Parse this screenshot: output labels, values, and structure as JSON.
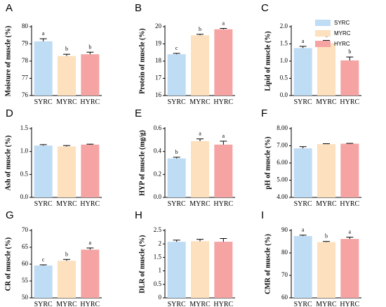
{
  "colors": {
    "SYRC": "#bfdcf5",
    "MYRC": "#fde0bd",
    "HYRC": "#f5a3a3",
    "axis": "#000000",
    "error": "#000000"
  },
  "legend": {
    "placement": "top-right",
    "entries": [
      "SYRC",
      "MYRC",
      "HYRC"
    ]
  },
  "chart_data": [
    {
      "type": "bar",
      "panel": "A",
      "ylabel": "Moisture of muscle (%)",
      "categories": [
        "SYRC",
        "MYRC",
        "HYRC"
      ],
      "values": [
        79.15,
        78.3,
        78.4
      ],
      "errors": [
        0.15,
        0.1,
        0.12
      ],
      "significance": [
        "a",
        "b",
        "b"
      ],
      "ylim": [
        76,
        80
      ],
      "yticks": [
        "76",
        "77",
        "78",
        "79",
        "80"
      ]
    },
    {
      "type": "bar",
      "panel": "B",
      "ylabel": "Protein of muscle (%)",
      "categories": [
        "SYRC",
        "MYRC",
        "HYRC"
      ],
      "values": [
        18.4,
        19.5,
        19.85
      ],
      "errors": [
        0.05,
        0.06,
        0.05
      ],
      "significance": [
        "c",
        "b",
        "a"
      ],
      "ylim": [
        16,
        20
      ],
      "yticks": [
        "16",
        "17",
        "18",
        "19",
        "20"
      ]
    },
    {
      "type": "bar",
      "panel": "C",
      "ylabel": "Lipid of muscle (%)",
      "categories": [
        "SYRC",
        "MYRC",
        "HYRC"
      ],
      "values": [
        1.38,
        1.52,
        1.02
      ],
      "errors": [
        0.05,
        0.08,
        0.1
      ],
      "significance": [
        "a",
        "a",
        "b"
      ],
      "ylim": [
        0,
        2
      ],
      "yticks": [
        "0.0",
        "0.5",
        "1.0",
        "1.5",
        "2.0"
      ]
    },
    {
      "type": "bar",
      "panel": "D",
      "ylabel": "Ash of muscle (%)",
      "categories": [
        "SYRC",
        "MYRC",
        "HYRC"
      ],
      "values": [
        1.13,
        1.11,
        1.15
      ],
      "errors": [
        0.02,
        0.02,
        0.01
      ],
      "significance": [
        "",
        "",
        ""
      ],
      "ylim": [
        0,
        1.5
      ],
      "yticks": [
        "0.0",
        "0.5",
        "1.0",
        "1.5"
      ]
    },
    {
      "type": "bar",
      "panel": "E",
      "ylabel": "HYP of muscle (mg/g)",
      "categories": [
        "SYRC",
        "MYRC",
        "HYRC"
      ],
      "values": [
        0.34,
        0.49,
        0.46
      ],
      "errors": [
        0.01,
        0.02,
        0.03
      ],
      "significance": [
        "b",
        "a",
        "a"
      ],
      "ylim": [
        0,
        0.6
      ],
      "yticks": [
        "0.0",
        "0.2",
        "0.4",
        "0.6"
      ]
    },
    {
      "type": "bar",
      "panel": "F",
      "ylabel": "pH of muscle (%)",
      "categories": [
        "SYRC",
        "MYRC",
        "HYRC"
      ],
      "values": [
        6.85,
        7.1,
        7.12
      ],
      "errors": [
        0.1,
        0.02,
        0.02
      ],
      "significance": [
        "",
        "",
        ""
      ],
      "ylim": [
        4,
        8
      ],
      "yticks": [
        "4.00",
        "5.00",
        "6.00",
        "7.00",
        "8.00"
      ]
    },
    {
      "type": "bar",
      "panel": "G",
      "ylabel": "CR of muscle (%)",
      "categories": [
        "SYRC",
        "MYRC",
        "HYRC"
      ],
      "values": [
        59.6,
        61.0,
        64.3
      ],
      "errors": [
        0.2,
        0.4,
        0.5
      ],
      "significance": [
        "c",
        "b",
        "a"
      ],
      "ylim": [
        50,
        70
      ],
      "yticks": [
        "50",
        "55",
        "60",
        "65",
        "70"
      ]
    },
    {
      "type": "bar",
      "panel": "H",
      "ylabel": "DLR of muscle (%)",
      "categories": [
        "SYRC",
        "MYRC",
        "HYRC"
      ],
      "values": [
        2.08,
        2.1,
        2.08
      ],
      "errors": [
        0.06,
        0.07,
        0.12
      ],
      "significance": [
        "",
        "",
        ""
      ],
      "ylim": [
        0,
        2.5
      ],
      "yticks": [
        "0",
        "0.5",
        "1",
        "1.5",
        "2",
        "2.5"
      ]
    },
    {
      "type": "bar",
      "panel": "I",
      "ylabel": "CMR of muscle (%)",
      "categories": [
        "SYRC",
        "MYRC",
        "HYRC"
      ],
      "values": [
        87.5,
        84.8,
        86.2
      ],
      "errors": [
        0.4,
        0.3,
        0.8
      ],
      "significance": [
        "a",
        "b",
        "a"
      ],
      "ylim": [
        60,
        90
      ],
      "yticks": [
        "60",
        "70",
        "80",
        "90"
      ]
    }
  ]
}
